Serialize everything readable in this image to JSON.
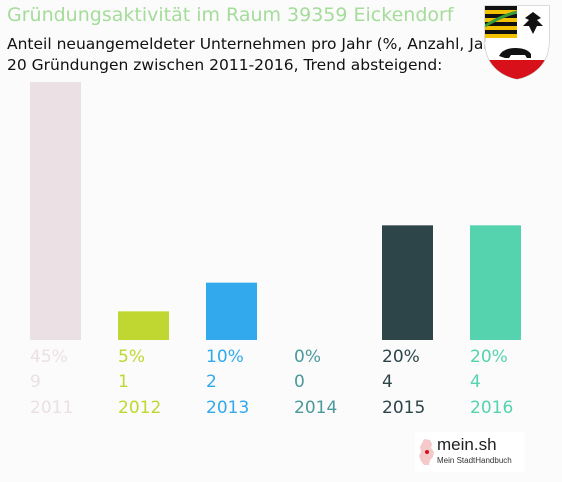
{
  "header": {
    "title": "Gründungsaktivität im Raum 39359 Eickendorf",
    "subtitle1": "Anteil neuangemeldeter Unternehmen pro Jahr (%, Anzahl, Jahr)",
    "subtitle2": "20 Gründungen zwischen 2011-2016, Trend absteigend:"
  },
  "crest": {
    "icon": "saxony-anhalt-coat-of-arms"
  },
  "logo": {
    "name": "mein.sh",
    "tagline": "Mein StadtHandbuch",
    "icon": "germany-map-icon"
  },
  "chart_data": {
    "type": "bar",
    "categories": [
      "2011",
      "2012",
      "2013",
      "2014",
      "2015",
      "2016"
    ],
    "values": [
      45,
      5,
      10,
      0,
      20,
      20
    ],
    "counts": [
      9,
      1,
      2,
      0,
      4,
      4
    ],
    "percent_labels": [
      "45%",
      "5%",
      "10%",
      "0%",
      "20%",
      "20%"
    ],
    "count_labels": [
      "9",
      "1",
      "2",
      "0",
      "4",
      "4"
    ],
    "colors": [
      "#ebe0e4",
      "#c0d731",
      "#31a9ec",
      "#4a999b",
      "#2d4549",
      "#55d3ae"
    ],
    "label_colors": [
      "#ebe0e4",
      "#c0d731",
      "#31a9ec",
      "#4a999b",
      "#2d4549",
      "#55d3ae"
    ],
    "ylim": [
      0,
      45
    ],
    "grid": false,
    "legend": "none"
  }
}
